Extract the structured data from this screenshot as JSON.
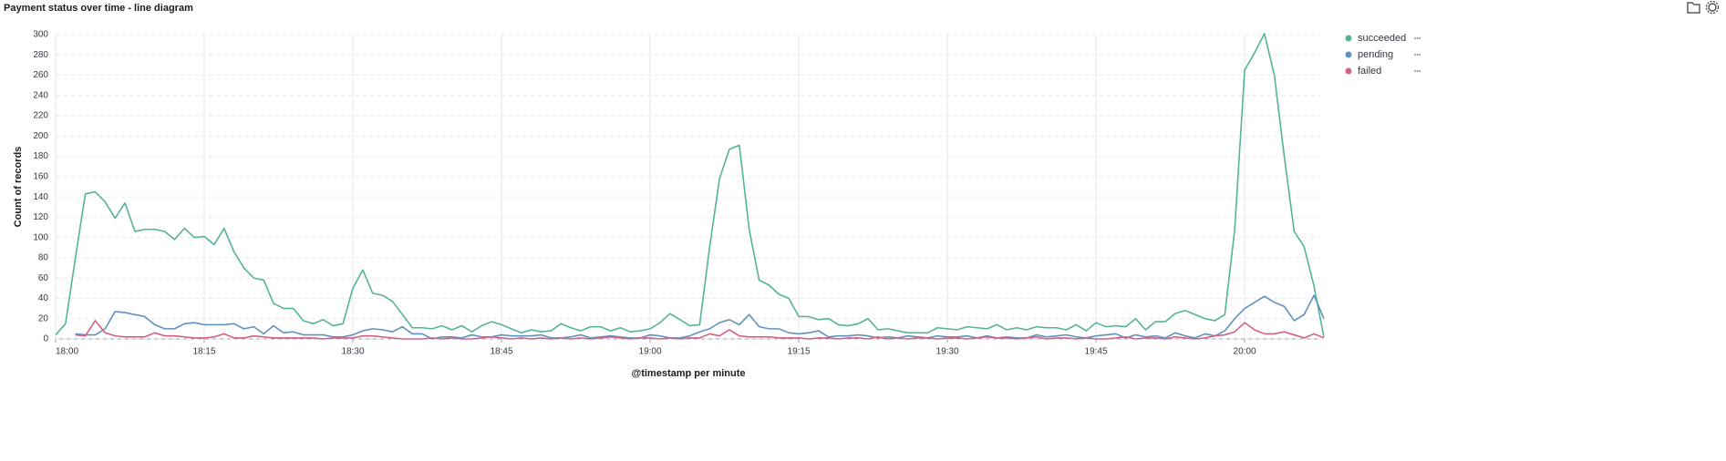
{
  "chart_data": {
    "type": "line",
    "title": "Payment status over time - line diagram",
    "x_label": "@timestamp per minute",
    "y_label": "Count of records",
    "x": [
      "18:00",
      "18:01",
      "18:02",
      "18:03",
      "18:04",
      "18:05",
      "18:06",
      "18:07",
      "18:08",
      "18:09",
      "18:10",
      "18:11",
      "18:12",
      "18:13",
      "18:14",
      "18:15",
      "18:16",
      "18:17",
      "18:18",
      "18:19",
      "18:20",
      "18:21",
      "18:22",
      "18:23",
      "18:24",
      "18:25",
      "18:26",
      "18:27",
      "18:28",
      "18:29",
      "18:30",
      "18:31",
      "18:32",
      "18:33",
      "18:34",
      "18:35",
      "18:36",
      "18:37",
      "18:38",
      "18:39",
      "18:40",
      "18:41",
      "18:42",
      "18:43",
      "18:44",
      "18:45",
      "18:46",
      "18:47",
      "18:48",
      "18:49",
      "18:50",
      "18:51",
      "18:52",
      "18:53",
      "18:54",
      "18:55",
      "18:56",
      "18:57",
      "18:58",
      "18:59",
      "19:00",
      "19:01",
      "19:02",
      "19:03",
      "19:04",
      "19:05",
      "19:06",
      "19:07",
      "19:08",
      "19:09",
      "19:10",
      "19:11",
      "19:12",
      "19:13",
      "19:14",
      "19:15",
      "19:16",
      "19:17",
      "19:18",
      "19:19",
      "19:20",
      "19:21",
      "19:22",
      "19:23",
      "19:24",
      "19:25",
      "19:26",
      "19:27",
      "19:28",
      "19:29",
      "19:30",
      "19:31",
      "19:32",
      "19:33",
      "19:34",
      "19:35",
      "19:36",
      "19:37",
      "19:38",
      "19:39",
      "19:40",
      "19:41",
      "19:42",
      "19:43",
      "19:44",
      "19:45",
      "19:46",
      "19:47",
      "19:48",
      "19:49",
      "19:50",
      "19:51",
      "19:52",
      "19:53",
      "19:54",
      "19:55",
      "19:56",
      "19:57",
      "19:58",
      "19:59",
      "20:00",
      "20:01",
      "20:02",
      "20:03",
      "20:04",
      "20:05",
      "20:06",
      "20:07",
      "20:08"
    ],
    "xticks": [
      "18:00",
      "18:15",
      "18:30",
      "18:45",
      "19:00",
      "19:15",
      "19:30",
      "19:45",
      "20:00"
    ],
    "series": [
      {
        "name": "succeeded",
        "color": "#54B399",
        "values": [
          4,
          15,
          80,
          143,
          145,
          135,
          119,
          134,
          106,
          108,
          108,
          106,
          98,
          109,
          100,
          101,
          93,
          109,
          86,
          70,
          60,
          58,
          35,
          30,
          30,
          18,
          15,
          19,
          13,
          15,
          50,
          68,
          45,
          43,
          37,
          24,
          11,
          11,
          10,
          13,
          9,
          13,
          7,
          13,
          17,
          14,
          10,
          6,
          9,
          7,
          8,
          15,
          11,
          8,
          12,
          12,
          8,
          11,
          7,
          8,
          10,
          16,
          25,
          19,
          13,
          14,
          90,
          158,
          187,
          191,
          108,
          58,
          53,
          44,
          40,
          22,
          22,
          19,
          20,
          14,
          13,
          15,
          20,
          9,
          10,
          8,
          6,
          6,
          6,
          11,
          10,
          9,
          12,
          11,
          10,
          14,
          9,
          11,
          9,
          12,
          11,
          11,
          9,
          14,
          8,
          16,
          12,
          13,
          12,
          20,
          9,
          17,
          17,
          25,
          28,
          24,
          20,
          18,
          24,
          108,
          265,
          282,
          301,
          260,
          180,
          106,
          91,
          52,
          2
        ]
      },
      {
        "name": "pending",
        "color": "#6092C0",
        "values": [
          null,
          null,
          5,
          4,
          4,
          10,
          27,
          26,
          24,
          22,
          14,
          10,
          10,
          15,
          16,
          14,
          14,
          14,
          15,
          10,
          12,
          5,
          13,
          6,
          7,
          4,
          4,
          4,
          2,
          2,
          4,
          8,
          10,
          9,
          7,
          12,
          5,
          5,
          0,
          2,
          2,
          1,
          4,
          2,
          2,
          4,
          3,
          3,
          3,
          4,
          1,
          1,
          2,
          4,
          1,
          2,
          3,
          2,
          1,
          1,
          4,
          3,
          1,
          1,
          3,
          7,
          10,
          16,
          19,
          14,
          24,
          12,
          10,
          10,
          6,
          5,
          6,
          8,
          2,
          3,
          3,
          4,
          3,
          1,
          2,
          1,
          3,
          2,
          1,
          3,
          2,
          2,
          3,
          1,
          3,
          1,
          2,
          1,
          1,
          4,
          2,
          3,
          4,
          2,
          1,
          3,
          4,
          5,
          1,
          4,
          2,
          3,
          1,
          6,
          3,
          1,
          5,
          3,
          8,
          20,
          30,
          36,
          42,
          36,
          32,
          18,
          24,
          43,
          20
        ]
      },
      {
        "name": "failed",
        "color": "#D36086",
        "values": [
          null,
          null,
          4,
          3,
          18,
          6,
          3,
          2,
          2,
          2,
          6,
          3,
          3,
          2,
          1,
          1,
          2,
          5,
          1,
          1,
          3,
          2,
          1,
          1,
          1,
          1,
          1,
          0,
          1,
          1,
          1,
          3,
          3,
          2,
          1,
          0,
          0,
          0,
          1,
          0,
          1,
          0,
          0,
          1,
          2,
          1,
          0,
          1,
          0,
          1,
          0,
          1,
          0,
          1,
          0,
          1,
          2,
          1,
          0,
          1,
          1,
          0,
          1,
          0,
          1,
          1,
          5,
          3,
          9,
          3,
          2,
          2,
          2,
          1,
          1,
          1,
          0,
          1,
          1,
          0,
          1,
          1,
          0,
          2,
          0,
          1,
          0,
          1,
          1,
          0,
          1,
          1,
          0,
          1,
          2,
          1,
          1,
          0,
          1,
          2,
          0,
          1,
          1,
          0,
          1,
          0,
          0,
          1,
          2,
          0,
          1,
          1,
          0,
          2,
          1,
          0,
          1,
          3,
          4,
          7,
          16,
          9,
          5,
          5,
          7,
          4,
          1,
          5,
          1
        ]
      }
    ],
    "ylim": [
      0,
      300
    ],
    "yticks": [
      0,
      20,
      40,
      60,
      80,
      100,
      120,
      140,
      160,
      180,
      200,
      220,
      240,
      260,
      280,
      300
    ],
    "grid": true,
    "legend": "right"
  }
}
